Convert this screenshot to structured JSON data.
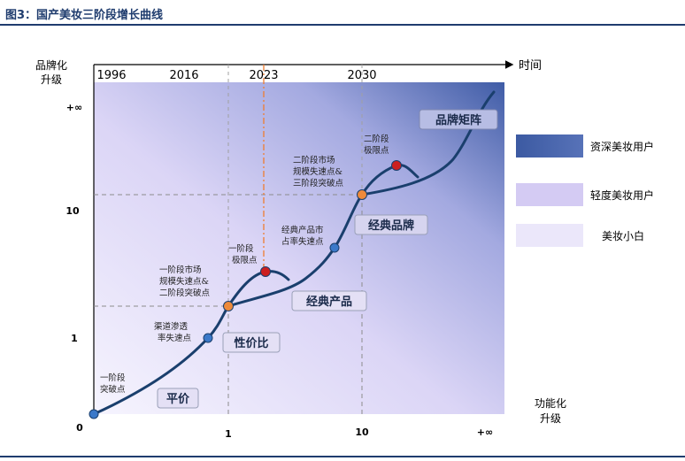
{
  "title": "图3：国产美妆三阶段增长曲线",
  "axes": {
    "y_label_line1": "品牌化",
    "y_label_line2": "升级",
    "x_label_top": "时间",
    "x_label_line1": "功能化",
    "x_label_line2": "升级",
    "origin": "0",
    "y_ticks": [
      "1",
      "10",
      "+∞"
    ],
    "x_ticks": [
      "1",
      "10",
      "+∞"
    ]
  },
  "years": [
    "1996",
    "2016",
    "2023",
    "2030"
  ],
  "stage_labels": {
    "flat_price": "平价",
    "value_for_money": "性价比",
    "classic_product": "经典产品",
    "classic_brand": "经典品牌",
    "brand_matrix": "品牌矩阵"
  },
  "annotations": {
    "stage1_breakthrough": [
      "一阶段",
      "突破点"
    ],
    "channel_penetration": [
      "渠道渗透",
      "率失速点"
    ],
    "stage1_stall": [
      "一阶段市场",
      "规模失速点&",
      "二阶段突破点"
    ],
    "stage1_limit": [
      "一阶段",
      "极限点"
    ],
    "classic_share": [
      "经典产品市",
      "占率失速点"
    ],
    "stage2_stall": [
      "二阶段市场",
      "规模失速点&",
      "三阶段突破点"
    ],
    "stage2_limit": [
      "二阶段",
      "极限点"
    ]
  },
  "legend": [
    {
      "label": "资深美妆用户",
      "color": "#3f5fa3"
    },
    {
      "label": "轻度美妆用户",
      "color": "#d4cbf3"
    },
    {
      "label": "美妆小白",
      "color": "#ebe7fa"
    }
  ],
  "colors": {
    "curve": "#1a3f6d",
    "blue_point": "#3b79c9",
    "orange_point": "#ee8a3a",
    "red_point": "#cc1f1f",
    "marker_2023": "#ee7d31"
  }
}
